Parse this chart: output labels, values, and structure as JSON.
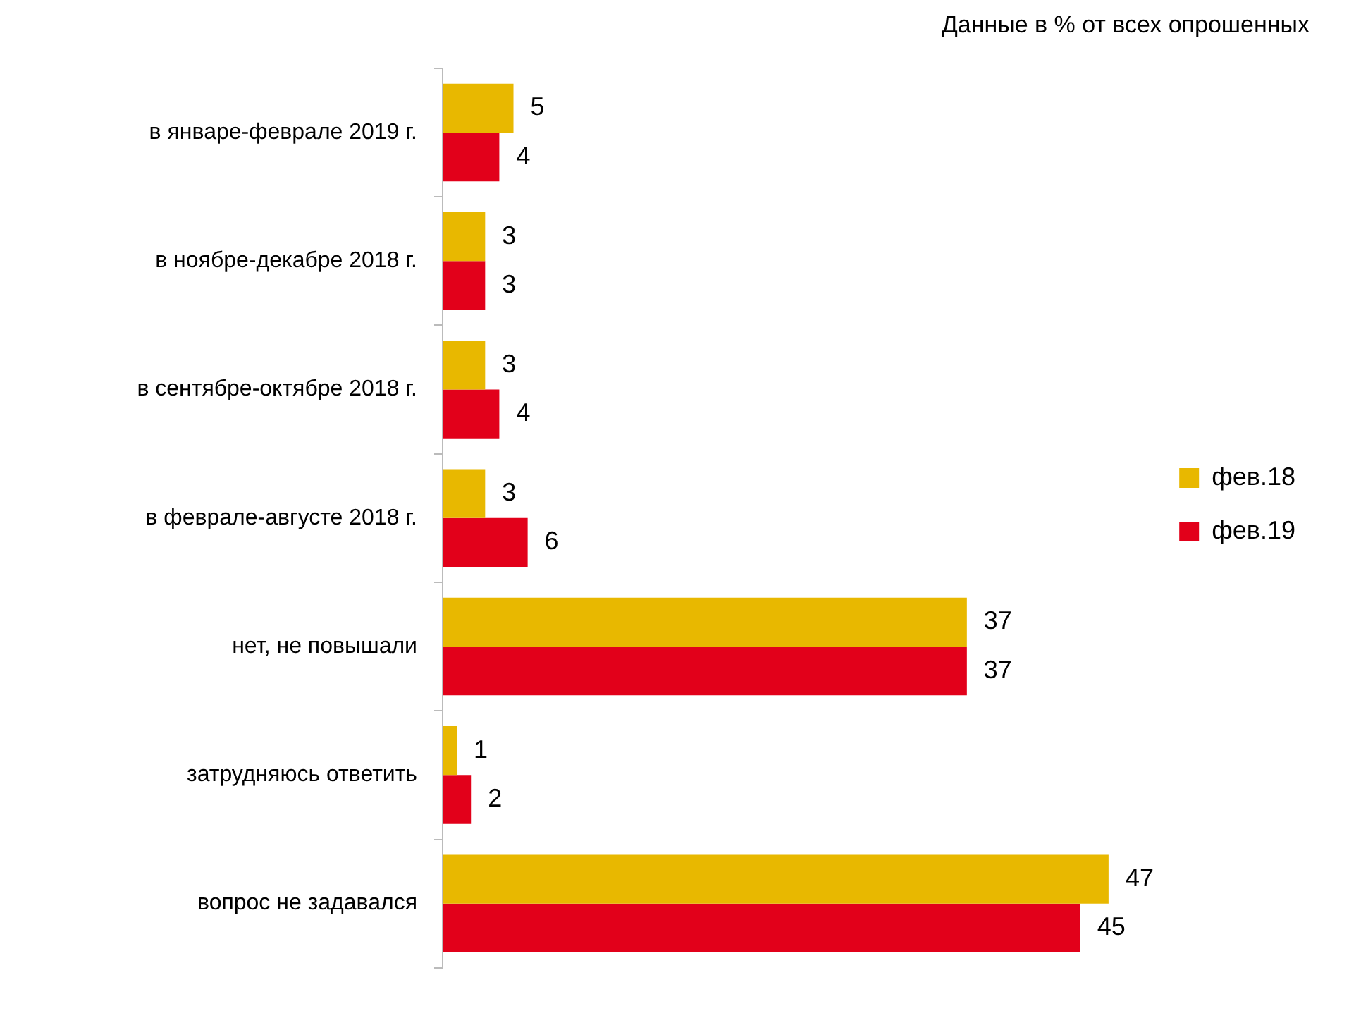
{
  "chart_data": {
    "type": "bar",
    "orientation": "horizontal",
    "subtitle": "Данные в % от всех опрошенных",
    "categories": [
      "в январе-феврале 2019 г.",
      "в ноябре-декабре 2018 г.",
      "в сентябре-октябре 2018 г.",
      "в феврале-августе 2018 г.",
      "нет, не повышали",
      "затрудняюсь ответить",
      "вопрос не задавался"
    ],
    "series": [
      {
        "name": "фев.18",
        "color": "#e8b800",
        "values": [
          5,
          3,
          3,
          3,
          37,
          1,
          47
        ]
      },
      {
        "name": "фев.19",
        "color": "#e2001a",
        "values": [
          4,
          3,
          4,
          6,
          37,
          2,
          45
        ]
      }
    ],
    "data_labels": true,
    "legend": "right",
    "grid": false
  }
}
